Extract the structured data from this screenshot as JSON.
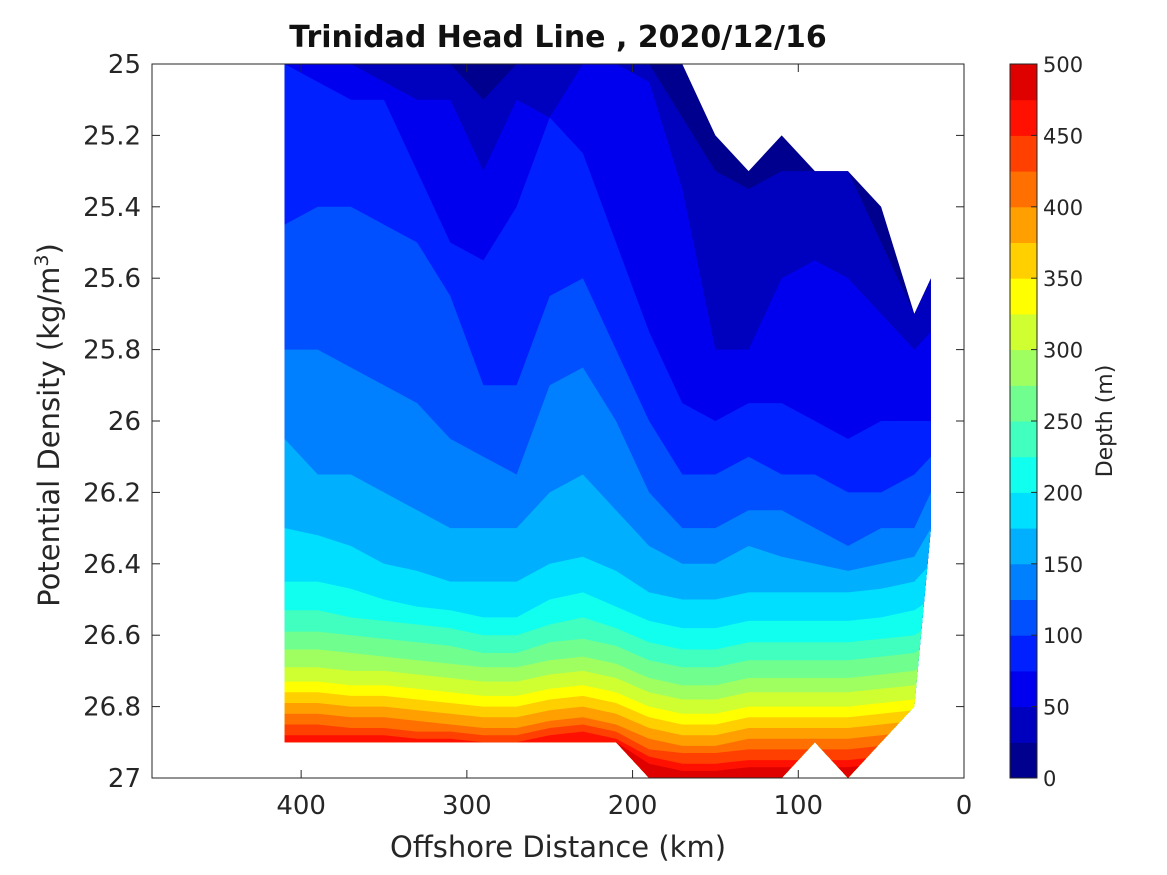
{
  "chart_data": {
    "type": "filled-contour",
    "title": "Trinidad Head Line , 2020/12/16",
    "xlabel": "Offshore Distance (km)",
    "ylabel_main": "Potential Density (kg/m",
    "ylabel_sup": "3",
    "ylabel_close": ")",
    "xlim": [
      490,
      0
    ],
    "ylim": [
      27,
      25
    ],
    "y_reversed": true,
    "x_reversed": true,
    "xticks": [
      400,
      300,
      200,
      100,
      0
    ],
    "yticks": [
      25,
      25.2,
      25.4,
      25.6,
      25.8,
      26,
      26.2,
      26.4,
      26.6,
      26.8,
      27
    ],
    "ytick_labels": [
      "25",
      "25.2",
      "25.4",
      "25.6",
      "25.8",
      "26",
      "26.2",
      "26.4",
      "26.6",
      "26.8",
      "27"
    ],
    "colorbar": {
      "label": "Depth (m)",
      "range": [
        0,
        500
      ],
      "level_step": 25,
      "ticks": [
        0,
        50,
        100,
        150,
        200,
        250,
        300,
        350,
        400,
        450,
        500
      ],
      "colormap": "jet",
      "colors": [
        "#00008f",
        "#0000bf",
        "#0000ef",
        "#0020ff",
        "#0050ff",
        "#0080ff",
        "#00b0ff",
        "#00dfff",
        "#10ffef",
        "#40ffbf",
        "#70ff8f",
        "#9fff60",
        "#cfff30",
        "#ffff00",
        "#ffcf00",
        "#ff9f00",
        "#ff7000",
        "#ff4000",
        "#ff1000",
        "#df0000",
        "#af0000"
      ]
    },
    "x_stations_km": [
      410,
      390,
      370,
      350,
      330,
      310,
      290,
      270,
      250,
      230,
      210,
      190,
      170,
      150,
      130,
      110,
      90,
      70,
      50,
      30,
      20
    ],
    "contours": [
      {
        "depth_m": 25,
        "density": [
          25.0,
          25.0,
          25.0,
          25.0,
          25.0,
          25.0,
          25.1,
          25.0,
          25.0,
          25.0,
          25.0,
          25.0,
          25.15,
          25.3,
          25.35,
          25.3,
          25.3,
          25.3,
          25.5,
          25.7,
          25.6
        ]
      },
      {
        "depth_m": 50,
        "density": [
          25.0,
          25.0,
          25.0,
          25.05,
          25.1,
          25.1,
          25.3,
          25.1,
          25.15,
          25.0,
          25.0,
          25.05,
          25.35,
          25.8,
          25.8,
          25.6,
          25.55,
          25.6,
          25.7,
          25.8,
          25.75
        ]
      },
      {
        "depth_m": 75,
        "density": [
          25.0,
          25.05,
          25.1,
          25.1,
          25.3,
          25.5,
          25.55,
          25.4,
          25.15,
          25.25,
          25.5,
          25.75,
          25.95,
          26.0,
          25.95,
          25.95,
          26.0,
          26.05,
          26.0,
          26.0,
          26.0
        ]
      },
      {
        "depth_m": 100,
        "density": [
          25.45,
          25.4,
          25.4,
          25.45,
          25.5,
          25.65,
          25.9,
          25.9,
          25.65,
          25.6,
          25.8,
          26.0,
          26.15,
          26.15,
          26.1,
          26.15,
          26.15,
          26.2,
          26.2,
          26.15,
          26.1
        ]
      },
      {
        "depth_m": 125,
        "density": [
          25.8,
          25.8,
          25.85,
          25.9,
          25.95,
          26.05,
          26.1,
          26.15,
          25.9,
          25.85,
          26.0,
          26.2,
          26.3,
          26.3,
          26.25,
          26.25,
          26.3,
          26.35,
          26.3,
          26.3,
          26.2
        ]
      },
      {
        "depth_m": 150,
        "density": [
          26.05,
          26.15,
          26.15,
          26.2,
          26.25,
          26.3,
          26.3,
          26.3,
          26.2,
          26.15,
          26.25,
          26.35,
          26.4,
          26.4,
          26.35,
          26.38,
          26.4,
          26.42,
          26.4,
          26.38,
          26.3
        ]
      },
      {
        "depth_m": 175,
        "density": [
          26.3,
          26.32,
          26.35,
          26.4,
          26.42,
          26.45,
          26.45,
          26.45,
          26.4,
          26.38,
          26.42,
          26.48,
          26.5,
          26.5,
          26.48,
          26.48,
          26.48,
          26.48,
          26.47,
          26.45,
          26.4
        ]
      },
      {
        "depth_m": 200,
        "density": [
          26.45,
          26.45,
          26.47,
          26.5,
          26.52,
          26.53,
          26.55,
          26.55,
          26.5,
          26.48,
          26.52,
          26.56,
          26.58,
          26.58,
          26.56,
          26.56,
          26.56,
          26.56,
          26.55,
          26.53,
          26.5
        ]
      },
      {
        "depth_m": 225,
        "density": [
          26.53,
          26.53,
          26.55,
          26.56,
          26.57,
          26.58,
          26.6,
          26.6,
          26.57,
          26.55,
          26.58,
          26.62,
          26.64,
          26.64,
          26.62,
          26.62,
          26.62,
          26.62,
          26.61,
          26.6,
          26.57
        ]
      },
      {
        "depth_m": 250,
        "density": [
          26.59,
          26.59,
          26.6,
          26.61,
          26.62,
          26.63,
          26.65,
          26.65,
          26.62,
          26.61,
          26.63,
          26.67,
          26.69,
          26.69,
          26.67,
          26.67,
          26.67,
          26.67,
          26.66,
          26.65,
          26.62
        ]
      },
      {
        "depth_m": 275,
        "density": [
          26.64,
          26.64,
          26.65,
          26.66,
          26.67,
          26.68,
          26.69,
          26.69,
          26.67,
          26.66,
          26.68,
          26.72,
          26.74,
          26.74,
          26.72,
          26.72,
          26.72,
          26.72,
          26.71,
          26.7,
          26.67
        ]
      },
      {
        "depth_m": 300,
        "density": [
          26.69,
          26.69,
          26.7,
          26.7,
          26.71,
          26.72,
          26.73,
          26.73,
          26.71,
          26.7,
          26.72,
          26.76,
          26.78,
          26.78,
          26.76,
          26.76,
          26.76,
          26.76,
          26.75,
          26.74,
          26.72
        ]
      },
      {
        "depth_m": 325,
        "density": [
          26.73,
          26.73,
          26.74,
          26.74,
          26.75,
          26.76,
          26.77,
          26.77,
          26.75,
          26.74,
          26.76,
          26.8,
          26.82,
          26.82,
          26.8,
          26.8,
          26.8,
          26.8,
          26.79,
          26.78,
          26.76
        ]
      },
      {
        "depth_m": 350,
        "density": [
          26.76,
          26.76,
          26.77,
          26.77,
          26.78,
          26.79,
          26.8,
          26.8,
          26.78,
          26.77,
          26.79,
          26.83,
          26.85,
          26.85,
          26.83,
          26.83,
          26.83,
          26.83,
          26.82,
          26.81,
          26.79
        ]
      },
      {
        "depth_m": 375,
        "density": [
          26.79,
          26.79,
          26.8,
          26.8,
          26.81,
          26.82,
          26.83,
          26.83,
          26.81,
          26.8,
          26.82,
          26.86,
          26.88,
          26.88,
          26.86,
          26.86,
          26.86,
          26.86,
          26.85,
          26.84,
          26.82
        ]
      },
      {
        "depth_m": 400,
        "density": [
          26.82,
          26.82,
          26.83,
          26.83,
          26.84,
          26.85,
          26.86,
          26.86,
          26.84,
          26.83,
          26.85,
          26.89,
          26.91,
          26.91,
          26.89,
          26.89,
          26.89,
          26.89,
          26.88,
          26.87,
          26.85
        ]
      },
      {
        "depth_m": 425,
        "density": [
          26.85,
          26.85,
          26.86,
          26.86,
          26.87,
          26.87,
          26.88,
          26.88,
          26.86,
          26.85,
          26.87,
          26.92,
          26.93,
          26.93,
          26.92,
          26.92,
          26.92,
          26.92,
          26.91,
          26.9,
          26.88
        ]
      },
      {
        "depth_m": 450,
        "density": [
          26.88,
          26.88,
          26.88,
          26.88,
          26.89,
          26.89,
          26.9,
          26.9,
          26.88,
          26.87,
          26.89,
          26.94,
          26.96,
          26.96,
          26.95,
          26.95,
          26.95,
          26.95,
          26.94,
          26.93,
          26.91
        ]
      },
      {
        "depth_m": 475,
        "density": [
          26.9,
          26.9,
          26.9,
          26.9,
          26.9,
          26.9,
          26.9,
          26.9,
          26.9,
          26.9,
          26.9,
          26.96,
          26.98,
          26.98,
          26.97,
          26.97,
          26.97,
          26.97,
          26.96,
          26.95,
          26.93
        ]
      }
    ],
    "valid_top_density": [
      25.0,
      25.0,
      25.0,
      25.0,
      25.0,
      25.0,
      25.0,
      25.0,
      25.0,
      25.0,
      25.0,
      25.0,
      25.0,
      25.2,
      25.3,
      25.2,
      25.3,
      25.3,
      25.4,
      25.7,
      25.6
    ],
    "valid_bottom_density": [
      26.9,
      26.9,
      26.9,
      26.9,
      26.9,
      26.9,
      26.9,
      26.9,
      26.9,
      26.9,
      26.9,
      27.0,
      27.0,
      27.0,
      27.0,
      27.0,
      26.9,
      27.0,
      26.9,
      26.8,
      26.3
    ]
  }
}
